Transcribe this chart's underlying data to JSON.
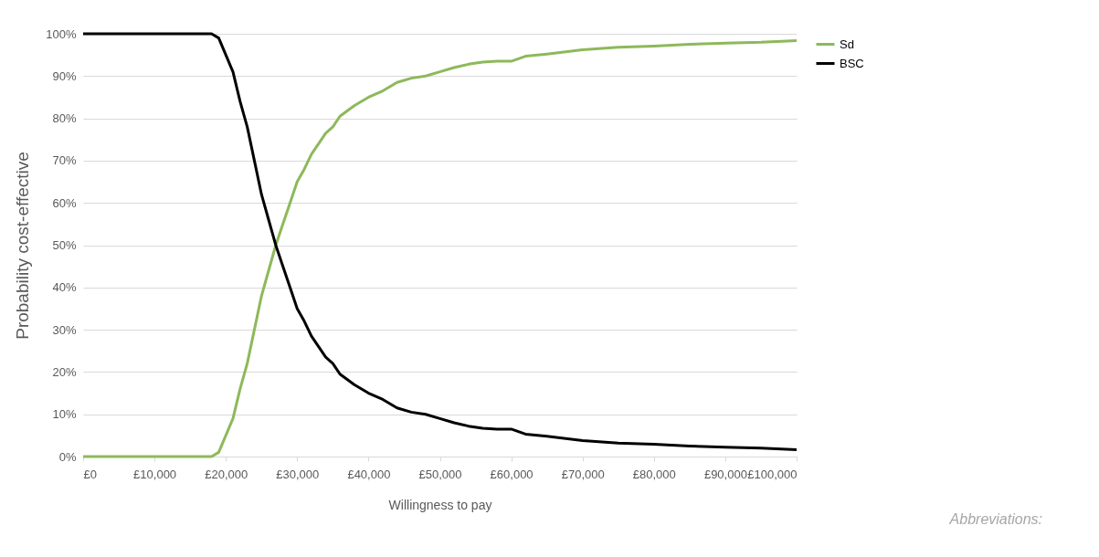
{
  "chart_data": {
    "type": "line",
    "xlabel": "Willingness to pay",
    "ylabel": "Probability cost-effective",
    "x": [
      0,
      10000,
      18000,
      19000,
      20000,
      21000,
      22000,
      23000,
      24000,
      25000,
      26000,
      27000,
      28000,
      29000,
      30000,
      31000,
      32000,
      33000,
      34000,
      35000,
      36000,
      38000,
      40000,
      42000,
      44000,
      46000,
      48000,
      50000,
      52000,
      54000,
      56000,
      58000,
      60000,
      62000,
      65000,
      70000,
      75000,
      80000,
      85000,
      90000,
      95000,
      100000
    ],
    "series": [
      {
        "name": "Sd",
        "color": "#8db95a",
        "values": [
          0,
          0,
          0,
          1,
          5,
          9,
          16,
          22,
          30,
          38,
          44,
          50,
          55,
          60,
          65,
          68,
          71.5,
          74,
          76.5,
          78,
          80.5,
          83,
          85,
          86.5,
          88.5,
          89.5,
          90,
          91,
          92,
          92.8,
          93.3,
          93.5,
          93.5,
          94.7,
          95.2,
          96.2,
          96.8,
          97.1,
          97.5,
          97.8,
          98,
          98.4
        ]
      },
      {
        "name": "BSC",
        "color": "#000000",
        "values": [
          100,
          100,
          100,
          99,
          95,
          91,
          84,
          78,
          70,
          62,
          56,
          50,
          45,
          40,
          35,
          32,
          28.5,
          26,
          23.5,
          22,
          19.5,
          17,
          15,
          13.5,
          11.5,
          10.5,
          10,
          9,
          8,
          7.2,
          6.7,
          6.5,
          6.5,
          5.3,
          4.8,
          3.8,
          3.2,
          2.9,
          2.5,
          2.2,
          2,
          1.6
        ]
      }
    ],
    "xlim": [
      0,
      100000
    ],
    "xticks": [
      {
        "value": 0,
        "label": "£0"
      },
      {
        "value": 10000,
        "label": "£10,000"
      },
      {
        "value": 20000,
        "label": "£20,000"
      },
      {
        "value": 30000,
        "label": "£30,000"
      },
      {
        "value": 40000,
        "label": "£40,000"
      },
      {
        "value": 50000,
        "label": "£50,000"
      },
      {
        "value": 60000,
        "label": "£60,000"
      },
      {
        "value": 70000,
        "label": "£70,000"
      },
      {
        "value": 80000,
        "label": "£80,000"
      },
      {
        "value": 90000,
        "label": "£90,000"
      },
      {
        "value": 100000,
        "label": "£100,000"
      }
    ],
    "ylim": [
      0,
      100
    ],
    "yticks": [
      {
        "value": 0,
        "label": "0%"
      },
      {
        "value": 10,
        "label": "10%"
      },
      {
        "value": 20,
        "label": "20%"
      },
      {
        "value": 30,
        "label": "30%"
      },
      {
        "value": 40,
        "label": "40%"
      },
      {
        "value": 50,
        "label": "50%"
      },
      {
        "value": 60,
        "label": "60%"
      },
      {
        "value": 70,
        "label": "70%"
      },
      {
        "value": 80,
        "label": "80%"
      },
      {
        "value": 90,
        "label": "90%"
      },
      {
        "value": 100,
        "label": "100%"
      }
    ],
    "grid": "y",
    "legend": "right",
    "marker": "none",
    "line_style": "solid",
    "annotations": [
      "Abbreviations:"
    ]
  }
}
